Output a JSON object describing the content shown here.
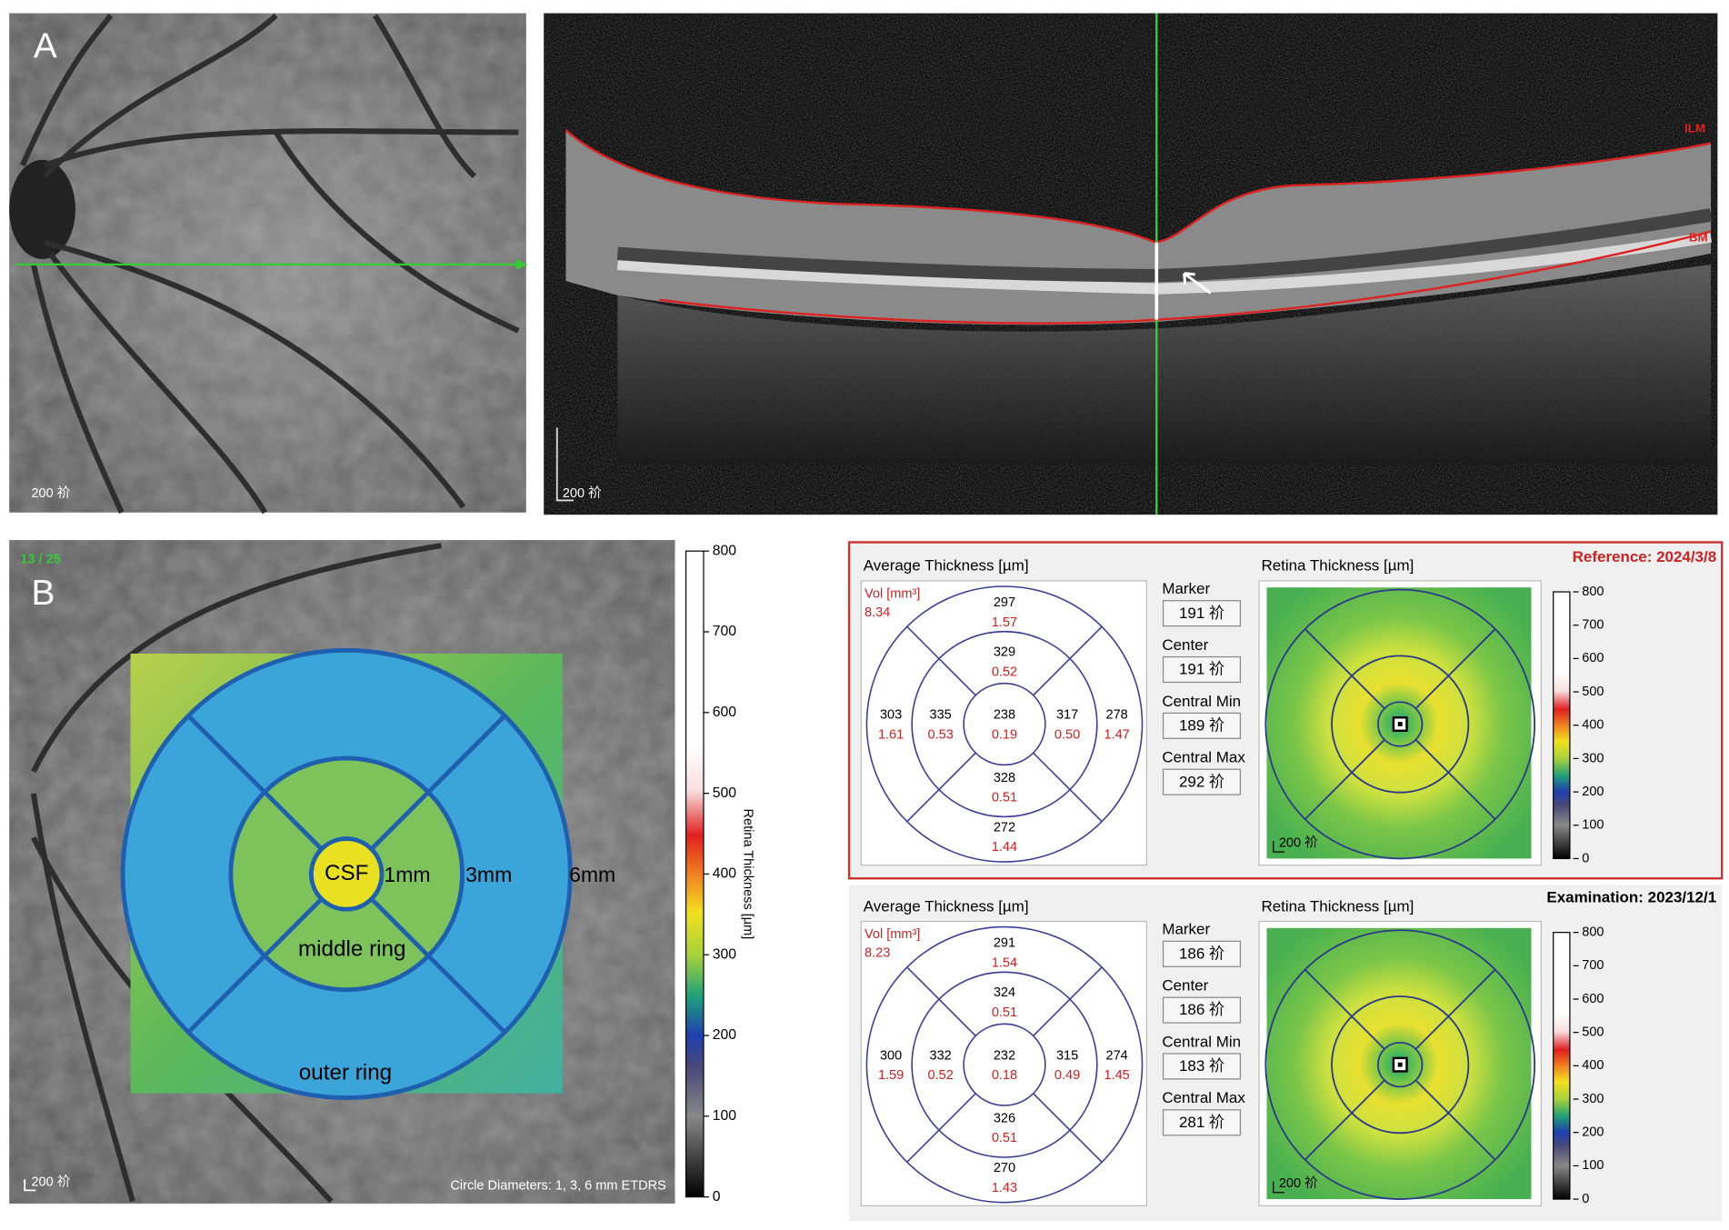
{
  "panel_a": {
    "label": "A",
    "fundus_scale": "200 祄",
    "oct_scale": "200 祄",
    "ilm": "ILM",
    "bm": "BM"
  },
  "panel_b": {
    "label": "B",
    "slice": "13 / 25",
    "csf": "CSF",
    "d1": "1mm",
    "d3": "3mm",
    "d6": "6mm",
    "middle": "middle ring",
    "outer": "outer ring",
    "scale": "200 祄",
    "footer": "Circle Diameters: 1, 3, 6 mm ETDRS",
    "colorbar_title": "Retina Thickness [µm]",
    "colorbar_ticks": [
      0,
      100,
      200,
      300,
      400,
      500,
      600,
      700,
      800
    ]
  },
  "reports": [
    {
      "header": "Reference: 2024/3/8",
      "avg_title": "Average Thickness [µm]",
      "vol_label": "Vol [mm³]",
      "vol": "8.34",
      "sectors": [
        {
          "t": "297",
          "v": "1.57"
        },
        {
          "t": "329",
          "v": "0.52"
        },
        {
          "t": "303",
          "v": "1.61"
        },
        {
          "t": "335",
          "v": "0.53"
        },
        {
          "t": "238",
          "v": "0.19"
        },
        {
          "t": "317",
          "v": "0.50"
        },
        {
          "t": "278",
          "v": "1.47"
        },
        {
          "t": "328",
          "v": "0.51"
        },
        {
          "t": "272",
          "v": "1.44"
        }
      ],
      "fields": [
        {
          "label": "Marker",
          "value": "191 祄"
        },
        {
          "label": "Center",
          "value": "191 祄"
        },
        {
          "label": "Central Min",
          "value": "189 祄"
        },
        {
          "label": "Central Max",
          "value": "292 祄"
        }
      ],
      "map_title": "Retina Thickness [µm]",
      "map_scale": "200 祄",
      "colorbar_ticks": [
        0,
        100,
        200,
        300,
        400,
        500,
        600,
        700,
        800
      ]
    },
    {
      "header": "Examination: 2023/12/1",
      "avg_title": "Average Thickness [µm]",
      "vol_label": "Vol [mm³]",
      "vol": "8.23",
      "sectors": [
        {
          "t": "291",
          "v": "1.54"
        },
        {
          "t": "324",
          "v": "0.51"
        },
        {
          "t": "300",
          "v": "1.59"
        },
        {
          "t": "332",
          "v": "0.52"
        },
        {
          "t": "232",
          "v": "0.18"
        },
        {
          "t": "315",
          "v": "0.49"
        },
        {
          "t": "274",
          "v": "1.45"
        },
        {
          "t": "326",
          "v": "0.51"
        },
        {
          "t": "270",
          "v": "1.43"
        }
      ],
      "fields": [
        {
          "label": "Marker",
          "value": "186 祄"
        },
        {
          "label": "Center",
          "value": "186 祄"
        },
        {
          "label": "Central Min",
          "value": "183 祄"
        },
        {
          "label": "Central Max",
          "value": "281 祄"
        }
      ],
      "map_title": "Retina Thickness [µm]",
      "map_scale": "200 祄",
      "colorbar_ticks": [
        0,
        100,
        200,
        300,
        400,
        500,
        600,
        700,
        800
      ]
    }
  ]
}
